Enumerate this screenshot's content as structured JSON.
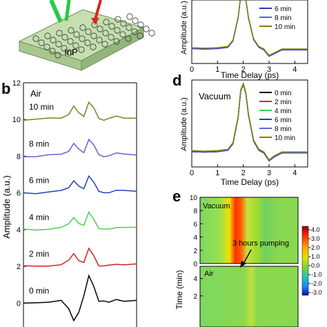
{
  "panel_letters": {
    "b": "b",
    "d": "d",
    "e": "e"
  },
  "schematic": {
    "substrate_label": "InP"
  },
  "chart_data": [
    {
      "id": "c",
      "type": "line",
      "xlabel": "Time Delay (ps)",
      "ylabel": "Amplitude (a.u.)",
      "xticks": [
        0,
        1,
        2,
        3,
        4
      ],
      "xlim": [
        0,
        4.5
      ],
      "legend_placement": "bottom-right",
      "series": [
        {
          "name": "6 min",
          "color": "#2f2fbf"
        },
        {
          "name": "8 min",
          "color": "#5b5bd6"
        },
        {
          "name": "10 min",
          "color": "#808000"
        }
      ],
      "x": [
        0,
        0.5,
        1.0,
        1.4,
        1.6,
        1.8,
        1.9,
        2.0,
        2.1,
        2.2,
        2.4,
        2.6,
        2.8,
        3.0,
        3.2,
        3.5,
        4.0,
        4.5
      ],
      "y": [
        0,
        -0.02,
        0.0,
        0.05,
        0.3,
        1.2,
        2.05,
        2.2,
        1.9,
        1.2,
        0.35,
        0.05,
        -0.05,
        -0.3,
        -0.2,
        -0.05,
        -0.05,
        -0.05
      ]
    },
    {
      "id": "b",
      "type": "line",
      "annotation": "Air",
      "ylabel": "Amplitude (a.u.)",
      "yticks": [
        0,
        2,
        4,
        6,
        8,
        10,
        12
      ],
      "ylim": [
        -1.3,
        12
      ],
      "series": [
        {
          "name": "0 min",
          "color": "#000000",
          "offset": 0
        },
        {
          "name": "2 min",
          "color": "#d62020",
          "offset": 2
        },
        {
          "name": "4 min",
          "color": "#4bd04b",
          "offset": 4
        },
        {
          "name": "6 min",
          "color": "#2040c0",
          "offset": 6
        },
        {
          "name": "8 min",
          "color": "#6060d8",
          "offset": 8
        },
        {
          "name": "10 min",
          "color": "#808020",
          "offset": 10
        }
      ],
      "profiles": {
        "t": [
          0,
          0.5,
          1.0,
          1.5,
          1.8,
          2.0,
          2.2,
          2.4,
          2.6,
          2.8,
          3.0,
          3.2,
          3.4,
          3.7,
          4.0,
          4.5
        ],
        "first": [
          0,
          0.02,
          0.05,
          0.15,
          -0.3,
          -0.95,
          -0.5,
          0.4,
          1.5,
          0.9,
          0.1,
          0.12,
          0.05,
          0.2,
          0.1,
          0.15
        ],
        "others": [
          0,
          0.0,
          0.05,
          0.1,
          0.3,
          0.7,
          0.35,
          0.2,
          0.95,
          0.6,
          0.05,
          0.0,
          0.05,
          0.15,
          0.1,
          0.1
        ]
      }
    },
    {
      "id": "d",
      "type": "line",
      "annotation": "Vacuum",
      "xlabel": "Time Delay (ps)",
      "ylabel": "Amplitude (a.u.)",
      "xticks": [
        0,
        1,
        2,
        3,
        4
      ],
      "xlim": [
        0,
        4.5
      ],
      "legend_placement": "top-right",
      "series": [
        {
          "name": "0 min",
          "color": "#000000"
        },
        {
          "name": "2 min",
          "color": "#e02020"
        },
        {
          "name": "4 min",
          "color": "#40d040"
        },
        {
          "name": "6 min",
          "color": "#2040c0"
        },
        {
          "name": "8 min",
          "color": "#6060d8"
        },
        {
          "name": "10 min",
          "color": "#808000"
        }
      ],
      "x": [
        0,
        0.5,
        1.0,
        1.4,
        1.6,
        1.8,
        1.9,
        2.0,
        2.1,
        2.2,
        2.4,
        2.6,
        2.8,
        3.0,
        3.2,
        3.5,
        4.0,
        4.5
      ],
      "y": [
        0,
        -0.02,
        0.0,
        0.05,
        0.3,
        1.3,
        2.3,
        2.55,
        2.2,
        1.4,
        0.4,
        0.05,
        -0.05,
        -0.35,
        -0.2,
        -0.05,
        -0.05,
        -0.05
      ]
    },
    {
      "id": "e",
      "type": "heatmap",
      "ylabel": "Time (min)",
      "panels": [
        {
          "label": "Vacuum",
          "yticks": [
            0,
            2,
            4,
            6,
            8,
            10
          ]
        },
        {
          "label": "Air",
          "yticks": [
            2,
            4
          ]
        }
      ],
      "annotation": "3 hours pumping",
      "colorbar": {
        "ticks": [
          "4.0",
          "3.0",
          "2.0",
          "1.0",
          "0.0",
          "-1.0",
          "-2.0",
          "-3.0"
        ],
        "range": [
          -3.0,
          4.0
        ]
      }
    }
  ]
}
